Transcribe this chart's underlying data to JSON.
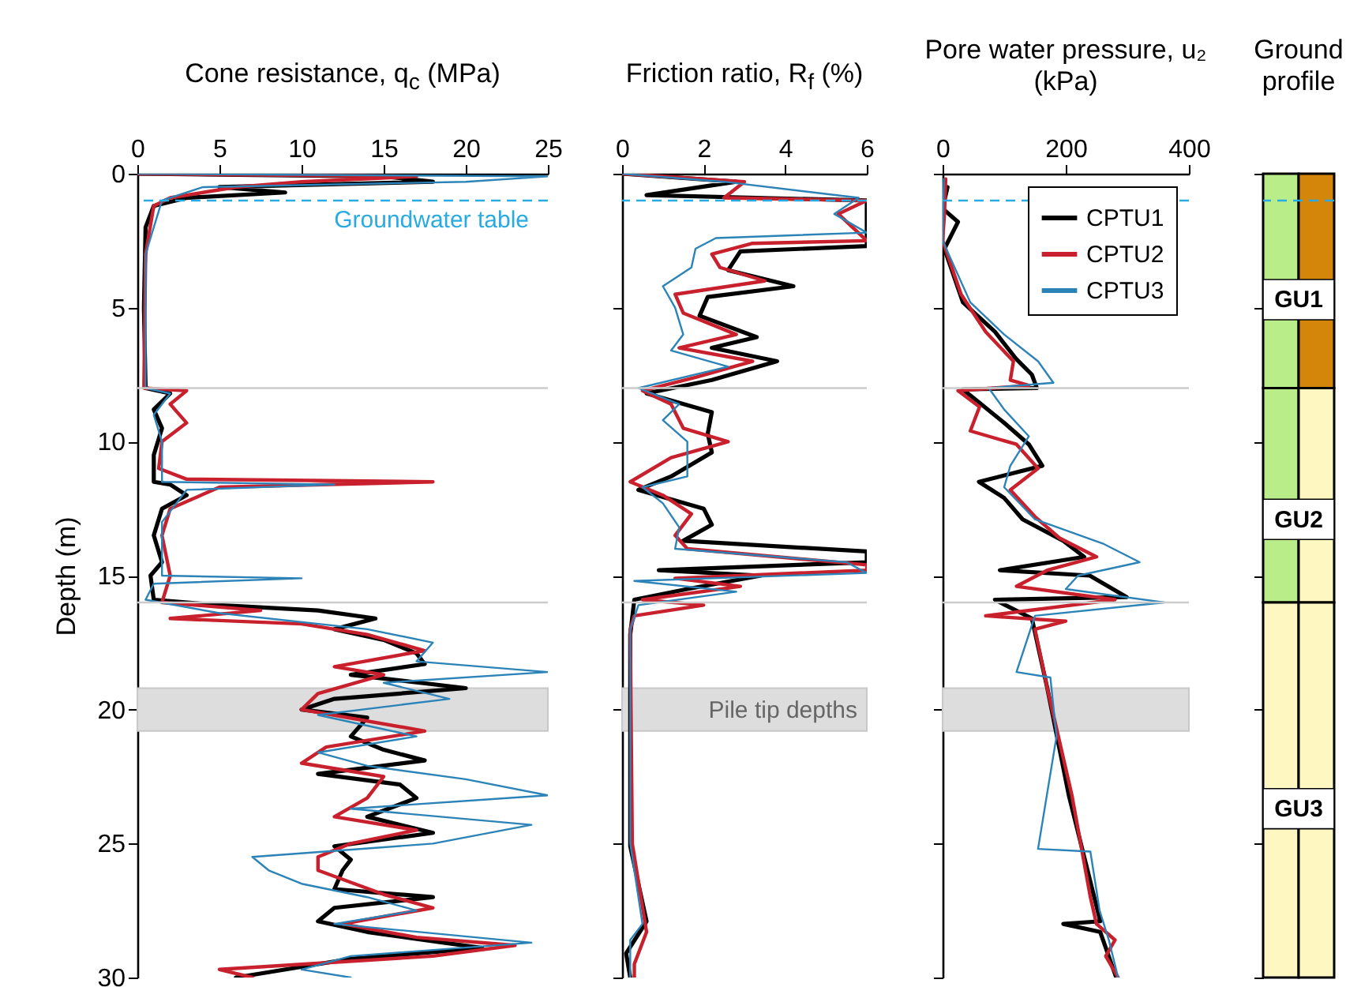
{
  "chart_data": [
    {
      "type": "line",
      "xlabel": "Cone resistance, q$_{c}$  (MPa)",
      "ylabel": "Depth  (m)",
      "xlim": [
        0,
        25
      ],
      "xticks": [
        0,
        5,
        10,
        15,
        20,
        25
      ],
      "ylim": [
        30,
        0
      ],
      "yticks": [
        0,
        5,
        10,
        15,
        20,
        25,
        30
      ],
      "series": [
        {
          "color": "#000000",
          "x": [
            0,
            15,
            18,
            5,
            9,
            3,
            1,
            0.5,
            0.4,
            0.5,
            2,
            1,
            1.5,
            1,
            1,
            2,
            3,
            1.5,
            1,
            1.5,
            0.8,
            1,
            5,
            11,
            14.5,
            12,
            15,
            17,
            17.5,
            13,
            20,
            12,
            10,
            14,
            13,
            15,
            17.5,
            11,
            16,
            17,
            14,
            18,
            12,
            13,
            12.5,
            12,
            18,
            12,
            11,
            14,
            21,
            13,
            8,
            6
          ],
          "values": [
            0,
            0.1,
            0.3,
            0.5,
            0.7,
            0.9,
            1.2,
            2,
            5,
            8,
            8.2,
            8.8,
            9.5,
            10.5,
            11.5,
            11.6,
            12,
            12.5,
            13.5,
            14.5,
            15,
            15.9,
            16.1,
            16.3,
            16.6,
            17,
            17.4,
            17.9,
            18.3,
            18.7,
            19.2,
            19.6,
            20,
            20.3,
            21,
            21.5,
            21.9,
            22.4,
            22.8,
            23.3,
            24,
            24.6,
            25.1,
            25.6,
            26,
            26.7,
            27,
            27.4,
            27.9,
            28.3,
            28.9,
            29.3,
            29.8,
            30
          ]
        },
        {
          "color": "#c8202c",
          "x": [
            0,
            17,
            10,
            6,
            2,
            1,
            0.5,
            0.4,
            3,
            2,
            3,
            1.5,
            1.3,
            3,
            18,
            5,
            2,
            1.5,
            2,
            1.5,
            7.5,
            2,
            10,
            14,
            17.5,
            12,
            15,
            11,
            10,
            17.5,
            11.5,
            10,
            15,
            14,
            12,
            17,
            13,
            11,
            11,
            15,
            18,
            12.5,
            17,
            23,
            18,
            5,
            7
          ],
          "values": [
            0,
            0.1,
            0.3,
            0.5,
            0.9,
            1.2,
            3,
            8,
            8.1,
            8.6,
            9.3,
            10,
            11,
            11.4,
            11.5,
            11.7,
            12.5,
            13.5,
            15,
            16,
            16.3,
            16.6,
            16.8,
            17.2,
            17.8,
            18.4,
            18.7,
            19.4,
            20,
            20.8,
            21.4,
            22,
            22.5,
            23.3,
            24,
            24.5,
            25,
            25.5,
            26,
            26.9,
            27.4,
            28,
            28.5,
            28.8,
            29.2,
            29.7,
            30
          ]
        },
        {
          "color": "#2c83b8",
          "x": [
            0,
            25,
            20,
            4,
            1.5,
            0.5,
            0.5,
            2,
            1,
            1.5,
            1.5,
            12,
            3,
            1.5,
            1.5,
            10,
            1,
            0.5,
            5,
            14,
            18,
            17,
            25,
            15,
            19,
            11,
            17,
            11,
            14,
            20,
            25,
            13,
            24,
            18,
            7,
            8,
            10,
            14,
            17,
            12,
            24,
            13,
            10,
            13
          ],
          "values": [
            0,
            0.1,
            0.3,
            0.5,
            1,
            3,
            8,
            8.2,
            9,
            10,
            11.5,
            11.6,
            11.8,
            13,
            15,
            15.1,
            15.3,
            15.9,
            16.4,
            17,
            17.5,
            18.2,
            18.6,
            19,
            19.6,
            20.2,
            21,
            21.6,
            22.1,
            22.6,
            23.2,
            23.7,
            24.3,
            25,
            25.5,
            26,
            26.5,
            27,
            27.5,
            28,
            28.7,
            29.2,
            29.7,
            30
          ]
        }
      ],
      "ref_lines": [
        {
          "axis": "y",
          "value": 1.0,
          "label": "Groundwater table",
          "color": "#29abe2",
          "line_style": "dashed"
        },
        {
          "axis": "y",
          "value": 8,
          "color": "#cccccc"
        },
        {
          "axis": "y",
          "value": 16,
          "color": "#cccccc"
        }
      ],
      "bands": [
        {
          "axis": "y",
          "from": 19.2,
          "to": 20.8,
          "color": "#dddddd"
        }
      ]
    },
    {
      "type": "line",
      "xlabel": "Friction ratio, R$_{f}$  (%)",
      "xlim": [
        0,
        6
      ],
      "xticks": [
        0,
        2,
        4,
        6
      ],
      "ylim": [
        30,
        0
      ],
      "yticks": [
        0,
        5,
        10,
        15,
        20,
        25,
        30
      ],
      "tick_labels": "x",
      "series": [
        {
          "color": "#000000",
          "x": [
            0,
            2.8,
            0.6,
            6,
            6,
            2.9,
            2.6,
            4.2,
            2.1,
            1.9,
            3.3,
            2.2,
            3.8,
            2.2,
            0.6,
            2.2,
            2.1,
            2.2,
            1.2,
            0.4,
            2,
            2.2,
            1.5,
            6,
            6,
            0.9,
            3.4,
            1.6,
            0.3,
            0.2,
            0.2,
            0.6,
            0.1,
            0.2
          ],
          "values": [
            0,
            0.3,
            0.8,
            1.0,
            2.7,
            2.9,
            3.6,
            4.2,
            4.6,
            5.3,
            6.1,
            6.5,
            7.0,
            7.7,
            8.2,
            8.9,
            9.7,
            10.4,
            11.3,
            11.8,
            12.5,
            13.1,
            13.7,
            14.1,
            14.5,
            14.8,
            15.0,
            15.5,
            15.9,
            17.2,
            25.1,
            27.9,
            29.1,
            30
          ]
        },
        {
          "color": "#c8202c",
          "x": [
            0,
            3,
            2.5,
            6,
            5.3,
            6,
            3.2,
            2.2,
            2.4,
            3.5,
            1.3,
            1.5,
            2.8,
            1.4,
            3.2,
            1.8,
            0.5,
            1.2,
            1.5,
            2.6,
            1.2,
            0.2,
            1.0,
            1.7,
            1.3,
            1.6,
            6,
            6,
            1.3,
            2.9,
            0.5,
            2.0,
            0.3,
            0.2,
            0.25,
            0.6,
            0.3,
            0.3
          ],
          "values": [
            0,
            0.3,
            0.9,
            1.0,
            1.5,
            2.5,
            2.6,
            3.0,
            3.5,
            4.0,
            4.5,
            5.2,
            6.0,
            6.5,
            7.0,
            7.6,
            8.1,
            8.6,
            9.5,
            10.0,
            10.6,
            11.5,
            12.0,
            12.7,
            13.5,
            14.0,
            14.6,
            14.8,
            15.1,
            15.4,
            15.9,
            16.1,
            16.5,
            17,
            25,
            28.3,
            29.5,
            30
          ]
        },
        {
          "color": "#2c83b8",
          "x": [
            0,
            2.5,
            5.8,
            5.2,
            6,
            2.3,
            1.8,
            1.7,
            1.0,
            1.3,
            1.5,
            1.2,
            2.6,
            0.4,
            1.4,
            1.0,
            1.6,
            1.6,
            0.5,
            1.0,
            1.4,
            1.3,
            5.5,
            6,
            0.3,
            2.8,
            0.4,
            0.2,
            0.2,
            0.5,
            0.2,
            0.2
          ],
          "values": [
            0,
            0.3,
            0.9,
            1.5,
            2.2,
            2.4,
            2.8,
            3.5,
            4.2,
            5.0,
            6.0,
            6.6,
            7.2,
            8.0,
            8.6,
            9.2,
            10.0,
            11.3,
            11.7,
            12.3,
            13.2,
            14.0,
            14.5,
            14.9,
            15.2,
            15.6,
            16.1,
            17,
            25,
            28.0,
            28.6,
            30
          ]
        }
      ],
      "ref_lines": [
        {
          "axis": "y",
          "value": 1.0,
          "color": "#29abe2",
          "line_style": "dashed"
        },
        {
          "axis": "y",
          "value": 8,
          "color": "#cccccc"
        },
        {
          "axis": "y",
          "value": 16,
          "color": "#cccccc"
        }
      ],
      "bands": [
        {
          "axis": "y",
          "from": 19.2,
          "to": 20.8,
          "label": "Pile tip depths",
          "color": "#dddddd"
        }
      ]
    },
    {
      "type": "line",
      "xlabel": "Pore water pressure, u₂ (kPa)",
      "xlim": [
        0,
        400
      ],
      "xticks": [
        0,
        200,
        400
      ],
      "ylim": [
        30,
        0
      ],
      "yticks": [
        0,
        5,
        10,
        15,
        20,
        25,
        30
      ],
      "tick_labels": "x",
      "legend": "top right",
      "series": [
        {
          "name": "CPTU1",
          "color": "#000000",
          "x": [
            8,
            0,
            25,
            3,
            33,
            85,
            119,
            145,
            153,
            33,
            68,
            100,
            140,
            162,
            59,
            100,
            130,
            196,
            230,
            93,
            239,
            299,
            85,
            145,
            170,
            205,
            256,
            196,
            256,
            282
          ],
          "values": [
            0.5,
            1.3,
            1.8,
            2.8,
            4.8,
            5.9,
            6.9,
            7.5,
            8.0,
            8.05,
            8.7,
            9.3,
            10.1,
            10.9,
            11.5,
            12.1,
            12.9,
            13.7,
            14.3,
            14.8,
            15.0,
            15.8,
            15.9,
            16.6,
            19.2,
            23.2,
            27.9,
            28.0,
            28.3,
            30
          ]
        },
        {
          "name": "CPTU2",
          "color": "#c8202c",
          "x": [
            5,
            3,
            0,
            30,
            70,
            115,
            110,
            140,
            25,
            60,
            45,
            120,
            155,
            110,
            150,
            190,
            250,
            170,
            120,
            280,
            70,
            200,
            150,
            170,
            210,
            240,
            250,
            280,
            265,
            285
          ],
          "values": [
            0.2,
            1.5,
            2.5,
            4.5,
            5.9,
            7.0,
            7.7,
            7.9,
            8.1,
            8.7,
            9.6,
            10.1,
            11,
            11.8,
            12.8,
            13.6,
            14.3,
            14.8,
            15.4,
            15.9,
            16.5,
            16.7,
            17,
            19.2,
            23.2,
            27,
            28,
            28.6,
            29.2,
            30
          ]
        },
        {
          "name": "CPTU3",
          "color": "#2c83b8",
          "x": [
            2,
            0,
            45,
            100,
            155,
            180,
            75,
            100,
            140,
            110,
            100,
            150,
            260,
            320,
            220,
            200,
            360,
            150,
            120,
            175,
            185,
            155,
            240,
            255,
            270,
            285
          ],
          "values": [
            0.2,
            2.5,
            4.8,
            6,
            7.0,
            7.8,
            8.0,
            8.8,
            9.8,
            10.9,
            11.7,
            12.9,
            13.8,
            14.5,
            15.0,
            15.5,
            16.0,
            16.5,
            18.6,
            18.8,
            21,
            25.2,
            25.3,
            27.5,
            28.6,
            30
          ]
        }
      ],
      "ref_lines": [
        {
          "axis": "y",
          "value": 1.0,
          "color": "#29abe2",
          "line_style": "dashed"
        },
        {
          "axis": "y",
          "value": 8,
          "color": "#cccccc"
        },
        {
          "axis": "y",
          "value": 16,
          "color": "#cccccc"
        }
      ],
      "bands": [
        {
          "axis": "y",
          "from": 19.2,
          "to": 20.8,
          "color": "#dddddd"
        }
      ]
    },
    {
      "type": "bar",
      "xlabel": "Ground profile",
      "stacked": true,
      "categories": [
        null,
        null
      ],
      "ylim": [
        30,
        0
      ],
      "yticks": [
        0,
        5,
        10,
        15,
        20,
        25,
        30
      ],
      "tick_labels": false,
      "series": [
        {
          "colors": [
            "#b9ed8a",
            "#d4860b"
          ],
          "values": [
            8,
            8
          ]
        },
        {
          "colors": [
            "#b9ed8a",
            "#fff7c2"
          ],
          "values": [
            8,
            8
          ]
        },
        {
          "colors": [
            "#fff7c2",
            "#fff7c2"
          ],
          "values": [
            14,
            14
          ]
        }
      ],
      "ref_lines": [
        {
          "axis": "y",
          "value": 1.0,
          "color": "#29abe2",
          "line_style": "dashed"
        }
      ],
      "annotations": [
        {
          "text": "GU1",
          "y": 4.7
        },
        {
          "text": "GU2",
          "y": 12.9
        },
        {
          "text": "GU3",
          "y": 23.7
        }
      ]
    }
  ]
}
